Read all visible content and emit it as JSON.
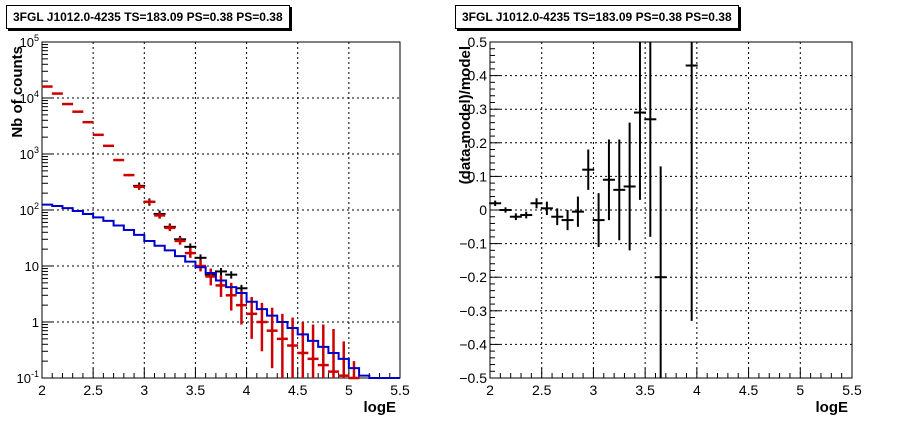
{
  "colors": {
    "data": "#000000",
    "model_points": "#cc0000",
    "model_line": "#0000cc",
    "grid": "#000000"
  },
  "chart_data": [
    {
      "type": "line",
      "title": "3FGL J1012.0-4235 TS=183.09 PS=0.38 PS=0.38",
      "xlabel": "logE",
      "ylabel": "Nb of counts",
      "yscale": "log",
      "xlim": [
        2,
        5.5
      ],
      "ylim": [
        0.1,
        100000
      ],
      "grid": true,
      "x_ticks": [
        "2",
        "2.5",
        "3",
        "3.5",
        "4",
        "4.5",
        "5",
        "5.5"
      ],
      "y_ticks": [
        "10^{-1}",
        "1",
        "10",
        "10^{2}",
        "10^{3}",
        "10^{4}",
        "10^{5}"
      ],
      "series": [
        {
          "name": "data",
          "color": "#000000",
          "points": [
            {
              "x": 2.95,
              "y": 270
            },
            {
              "x": 3.05,
              "y": 140
            },
            {
              "x": 3.15,
              "y": 85
            },
            {
              "x": 3.25,
              "y": 50
            },
            {
              "x": 3.35,
              "y": 30
            },
            {
              "x": 3.45,
              "y": 22
            },
            {
              "x": 3.55,
              "y": 14
            },
            {
              "x": 3.65,
              "y": 7
            },
            {
              "x": 3.75,
              "y": 8
            },
            {
              "x": 3.85,
              "y": 7
            },
            {
              "x": 3.95,
              "y": 4
            }
          ]
        },
        {
          "name": "model",
          "color": "#cc0000",
          "points": [
            {
              "x": 2.05,
              "y": 16000,
              "lo": 15800,
              "hi": 16200
            },
            {
              "x": 2.15,
              "y": 12000,
              "lo": 11800,
              "hi": 12200
            },
            {
              "x": 2.25,
              "y": 7800,
              "lo": 7650,
              "hi": 7950
            },
            {
              "x": 2.35,
              "y": 5700,
              "lo": 5600,
              "hi": 5800
            },
            {
              "x": 2.45,
              "y": 3700,
              "lo": 3600,
              "hi": 3800
            },
            {
              "x": 2.55,
              "y": 2200,
              "lo": 2130,
              "hi": 2270
            },
            {
              "x": 2.65,
              "y": 1400,
              "lo": 1350,
              "hi": 1450
            },
            {
              "x": 2.75,
              "y": 780,
              "lo": 750,
              "hi": 810
            },
            {
              "x": 2.85,
              "y": 420,
              "lo": 400,
              "hi": 440
            },
            {
              "x": 2.95,
              "y": 260,
              "lo": 230,
              "hi": 290
            },
            {
              "x": 3.05,
              "y": 140,
              "lo": 125,
              "hi": 155
            },
            {
              "x": 3.15,
              "y": 80,
              "lo": 70,
              "hi": 90
            },
            {
              "x": 3.25,
              "y": 48,
              "lo": 42,
              "hi": 55
            },
            {
              "x": 3.35,
              "y": 28,
              "lo": 24,
              "hi": 33
            },
            {
              "x": 3.45,
              "y": 17,
              "lo": 14,
              "hi": 21
            },
            {
              "x": 3.55,
              "y": 10,
              "lo": 8,
              "hi": 13
            },
            {
              "x": 3.65,
              "y": 6.5,
              "lo": 4.5,
              "hi": 9
            },
            {
              "x": 3.75,
              "y": 4.5,
              "lo": 2.8,
              "hi": 6.8
            },
            {
              "x": 3.85,
              "y": 3.0,
              "lo": 1.6,
              "hi": 5.0
            },
            {
              "x": 3.95,
              "y": 2.0,
              "lo": 0.9,
              "hi": 3.6
            },
            {
              "x": 4.05,
              "y": 1.4,
              "lo": 0.5,
              "hi": 2.8
            },
            {
              "x": 4.15,
              "y": 1.0,
              "lo": 0.3,
              "hi": 2.2
            },
            {
              "x": 4.25,
              "y": 0.7,
              "lo": 0.15,
              "hi": 1.8
            },
            {
              "x": 4.35,
              "y": 0.5,
              "lo": 0.1,
              "hi": 1.4
            },
            {
              "x": 4.45,
              "y": 0.38,
              "lo": 0.1,
              "hi": 1.2
            },
            {
              "x": 4.55,
              "y": 0.28,
              "lo": 0.1,
              "hi": 1.0
            },
            {
              "x": 4.65,
              "y": 0.22,
              "lo": 0.1,
              "hi": 0.9
            },
            {
              "x": 4.75,
              "y": 0.17,
              "lo": 0.1,
              "hi": 0.9
            },
            {
              "x": 4.85,
              "y": 0.13,
              "lo": 0.1,
              "hi": 0.75
            },
            {
              "x": 4.95,
              "y": 0.11,
              "lo": 0.1,
              "hi": 0.45
            },
            {
              "x": 5.05,
              "y": 0.1,
              "lo": 0.1,
              "hi": 0.2
            }
          ]
        },
        {
          "name": "background",
          "color": "#0000cc",
          "step": true,
          "bin_edges": [
            2.0,
            2.1,
            2.2,
            2.3,
            2.4,
            2.5,
            2.6,
            2.7,
            2.8,
            2.9,
            3.0,
            3.1,
            3.2,
            3.3,
            3.4,
            3.5,
            3.6,
            3.7,
            3.8,
            3.9,
            4.0,
            4.1,
            4.2,
            4.3,
            4.4,
            4.5,
            4.6,
            4.7,
            4.8,
            4.9,
            5.0,
            5.1,
            5.2,
            5.3,
            5.4,
            5.5
          ],
          "values": [
            125,
            118,
            108,
            96,
            85,
            74,
            64,
            53,
            44,
            36,
            28,
            23,
            19,
            15,
            12,
            9.5,
            7.5,
            5.5,
            4.2,
            3.3,
            2.3,
            1.7,
            1.3,
            1.0,
            0.78,
            0.6,
            0.46,
            0.36,
            0.28,
            0.22,
            0.15,
            0.11,
            0.1,
            0.1,
            0.1
          ]
        }
      ]
    },
    {
      "type": "scatter",
      "title": "3FGL J1012.0-4235 TS=183.09 PS=0.38 PS=0.38",
      "xlabel": "logE",
      "ylabel": "(data-model)/model",
      "xlim": [
        2,
        5.5
      ],
      "ylim": [
        -0.5,
        0.5
      ],
      "grid": true,
      "x_ticks": [
        "2",
        "2.5",
        "3",
        "3.5",
        "4",
        "4.5",
        "5",
        "5.5"
      ],
      "y_ticks": [
        "−0.5",
        "−0.4",
        "−0.3",
        "−0.2",
        "−0.1",
        "0",
        "0.1",
        "0.2",
        "0.3",
        "0.4",
        "0.5"
      ],
      "series": [
        {
          "name": "residual",
          "color": "#000000",
          "points": [
            {
              "x": 2.05,
              "y": 0.02,
              "lo": 0.012,
              "hi": 0.028
            },
            {
              "x": 2.15,
              "y": 0.0,
              "lo": -0.008,
              "hi": 0.008
            },
            {
              "x": 2.25,
              "y": -0.02,
              "lo": -0.03,
              "hi": -0.01
            },
            {
              "x": 2.35,
              "y": -0.015,
              "lo": -0.025,
              "hi": -0.005
            },
            {
              "x": 2.45,
              "y": 0.02,
              "lo": 0.005,
              "hi": 0.035
            },
            {
              "x": 2.55,
              "y": 0.005,
              "lo": -0.015,
              "hi": 0.025
            },
            {
              "x": 2.65,
              "y": -0.02,
              "lo": -0.045,
              "hi": 0.005
            },
            {
              "x": 2.75,
              "y": -0.03,
              "lo": -0.06,
              "hi": 0.0
            },
            {
              "x": 2.85,
              "y": -0.005,
              "lo": -0.05,
              "hi": 0.04
            },
            {
              "x": 2.95,
              "y": 0.12,
              "lo": 0.06,
              "hi": 0.18
            },
            {
              "x": 3.05,
              "y": -0.03,
              "lo": -0.11,
              "hi": 0.05
            },
            {
              "x": 3.15,
              "y": 0.09,
              "lo": -0.03,
              "hi": 0.21
            },
            {
              "x": 3.25,
              "y": 0.06,
              "lo": -0.09,
              "hi": 0.21
            },
            {
              "x": 3.35,
              "y": 0.07,
              "lo": -0.12,
              "hi": 0.26
            },
            {
              "x": 3.45,
              "y": 0.29,
              "lo": 0.03,
              "hi": 0.5
            },
            {
              "x": 3.55,
              "y": 0.27,
              "lo": -0.08,
              "hi": 0.5
            },
            {
              "x": 3.65,
              "y": -0.2,
              "lo": -0.5,
              "hi": 0.13
            },
            {
              "x": 3.95,
              "y": 0.43,
              "lo": -0.33,
              "hi": 0.5
            }
          ]
        }
      ]
    }
  ]
}
